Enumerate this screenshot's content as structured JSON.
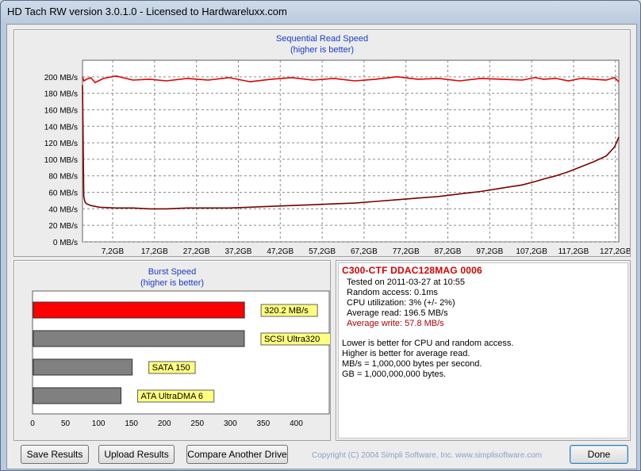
{
  "window": {
    "title": "HD Tach RW version 3.0.1.0 - Licensed to Hardwareluxx.com"
  },
  "sequential": {
    "title": "Sequential Read Speed",
    "subtitle": "(higher is better)"
  },
  "burst": {
    "title": "Burst Speed",
    "subtitle": "(higher is better)"
  },
  "info": {
    "drive_name": "C300-CTF DDAC128MAG 0006",
    "tested_on": "Tested on 2011-03-27 at 10:55",
    "random_access": "Random access: 0.1ms",
    "cpu_utilization": "CPU utilization: 3% (+/- 2%)",
    "average_read": "Average read: 196.5 MB/s",
    "average_write": "Average write: 57.8 MB/s",
    "notes": [
      "Lower is better for CPU and random access.",
      "Higher is better for average read.",
      "MB/s = 1,000,000 bytes per second.",
      "GB = 1,000,000,000 bytes."
    ]
  },
  "buttons": {
    "save": "Save Results",
    "upload": "Upload Results",
    "compare": "Compare Another Drive",
    "done": "Done"
  },
  "copyright": "Copyright (C) 2004 Simpli Software, Inc. www.simplisoftware.com",
  "colors": {
    "read": "#e00000",
    "write": "#7a0000",
    "burst_bar": "#ff0000",
    "ref_bar": "#808080",
    "label_bg": "#ffff80"
  },
  "chart_data": [
    {
      "type": "line",
      "title": "Sequential Read Speed",
      "subtitle": "(higher is better)",
      "ylim": [
        0,
        220
      ],
      "y_ticks": [
        0,
        20,
        40,
        60,
        80,
        100,
        120,
        140,
        160,
        180,
        200
      ],
      "y_tick_labels": [
        "0 MB/s",
        "20 MB/s",
        "40 MB/s",
        "60 MB/s",
        "80 MB/s",
        "100 MB/s",
        "120 MB/s",
        "140 MB/s",
        "160 MB/s",
        "180 MB/s",
        "200 MB/s"
      ],
      "xlim": [
        0,
        128
      ],
      "x_ticks": [
        7.2,
        17.2,
        27.2,
        37.2,
        47.2,
        57.2,
        67.2,
        77.2,
        87.2,
        97.2,
        107.2,
        117.2,
        127.2
      ],
      "x_tick_labels": [
        "7,2GB",
        "17,2GB",
        "27,2GB",
        "37,2GB",
        "47,2GB",
        "57,2GB",
        "67,2GB",
        "77,2GB",
        "87,2GB",
        "97,2GB",
        "107,2GB",
        "117,2GB",
        "127,2GB"
      ],
      "grid": true,
      "series": [
        {
          "x": [
            0,
            0.3,
            1,
            2,
            3,
            5,
            8,
            12,
            16,
            20,
            25,
            30,
            35,
            40,
            45,
            50,
            55,
            60,
            65,
            70,
            75,
            80,
            85,
            90,
            95,
            100,
            105,
            108,
            110,
            113,
            116,
            119,
            122,
            125,
            127,
            128
          ],
          "values": [
            200,
            195,
            197,
            199,
            193,
            198,
            201,
            196,
            197,
            195,
            198,
            196,
            199,
            194,
            197,
            199,
            196,
            198,
            195,
            197,
            200,
            197,
            198,
            195,
            198,
            197,
            196,
            199,
            197,
            198,
            195,
            198,
            197,
            196,
            199,
            194
          ]
        },
        {
          "x": [
            0,
            0.3,
            0.6,
            1,
            2,
            4,
            8,
            12,
            16,
            20,
            25,
            30,
            35,
            40,
            45,
            50,
            55,
            60,
            65,
            70,
            75,
            80,
            85,
            90,
            95,
            100,
            105,
            108,
            110,
            113,
            116,
            119,
            122,
            125,
            127,
            128
          ],
          "values": [
            190,
            55,
            48,
            46,
            44,
            42,
            41,
            41,
            40,
            40,
            41,
            41,
            41,
            42,
            43,
            44,
            45,
            46,
            47,
            49,
            51,
            53,
            55,
            58,
            61,
            65,
            69,
            73,
            76,
            80,
            85,
            91,
            97,
            104,
            115,
            127
          ]
        }
      ]
    },
    {
      "type": "bar",
      "title": "Burst Speed",
      "subtitle": "(higher is better)",
      "categories": [
        "320.2 MB/s",
        "SCSI Ultra320",
        "SATA 150",
        "ATA UltraDMA 6"
      ],
      "values": [
        320.2,
        320,
        150,
        133
      ],
      "xlim": [
        0,
        450
      ],
      "x_ticks": [
        0,
        50,
        100,
        150,
        200,
        250,
        300,
        350,
        400
      ],
      "x_tick_labels": [
        "0",
        "50",
        "100",
        "150",
        "200",
        "250",
        "300",
        "350",
        "400"
      ]
    }
  ]
}
